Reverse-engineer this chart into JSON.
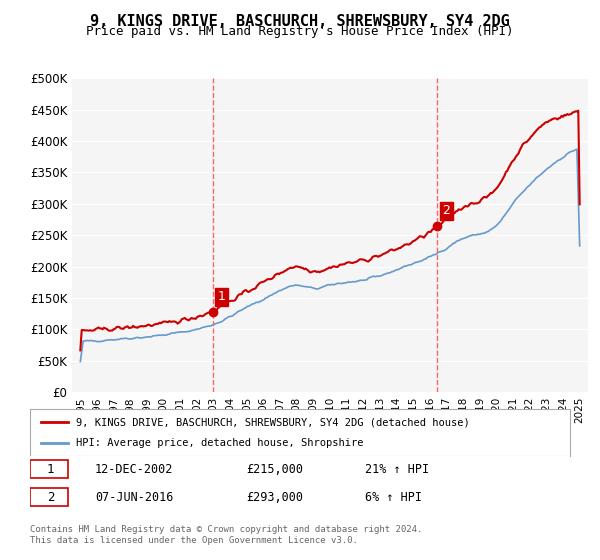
{
  "title": "9, KINGS DRIVE, BASCHURCH, SHREWSBURY, SY4 2DG",
  "subtitle": "Price paid vs. HM Land Registry's House Price Index (HPI)",
  "xlabel": "",
  "ylabel": "",
  "ylim": [
    0,
    500000
  ],
  "yticks": [
    0,
    50000,
    100000,
    150000,
    200000,
    250000,
    300000,
    350000,
    400000,
    450000,
    500000
  ],
  "ytick_labels": [
    "£0",
    "£50K",
    "£100K",
    "£150K",
    "£200K",
    "£250K",
    "£300K",
    "£350K",
    "£400K",
    "£450K",
    "£500K"
  ],
  "xtick_years": [
    1995,
    1996,
    1997,
    1998,
    1999,
    2000,
    2001,
    2002,
    2003,
    2004,
    2005,
    2006,
    2007,
    2008,
    2009,
    2010,
    2011,
    2012,
    2013,
    2014,
    2015,
    2016,
    2017,
    2018,
    2019,
    2020,
    2021,
    2022,
    2023,
    2024,
    2025
  ],
  "red_line_color": "#cc0000",
  "blue_line_color": "#6699cc",
  "dashed_vline_color": "#ff6666",
  "transaction1_x": 2002.95,
  "transaction1_y": 215000,
  "transaction2_x": 2016.44,
  "transaction2_y": 293000,
  "legend_label_red": "9, KINGS DRIVE, BASCHURCH, SHREWSBURY, SY4 2DG (detached house)",
  "legend_label_blue": "HPI: Average price, detached house, Shropshire",
  "table_row1": "1    12-DEC-2002    £215,000    21% ↑ HPI",
  "table_row2": "2    07-JUN-2016    £293,000      6% ↑ HPI",
  "footer": "Contains HM Land Registry data © Crown copyright and database right 2024.\nThis data is licensed under the Open Government Licence v3.0.",
  "background_color": "#ffffff",
  "plot_bg_color": "#f5f5f5"
}
